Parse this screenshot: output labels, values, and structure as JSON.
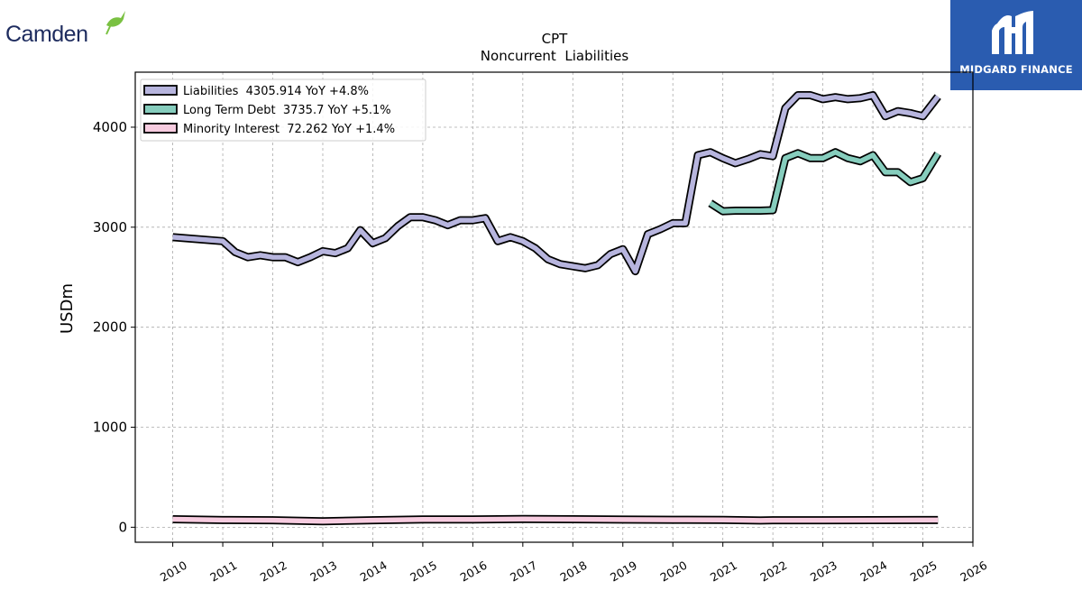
{
  "company_logo": {
    "text": "Camden",
    "colors": {
      "text": "#1d2b5e",
      "bird": "#7ac142"
    }
  },
  "brand": {
    "name": "MIDGARD FINANCE",
    "background": "#2a5cb0"
  },
  "chart_data": {
    "type": "line",
    "title": "CPT",
    "subtitle": "Noncurrent  Liabilities",
    "ylabel": "USDm",
    "xlabel": "",
    "xlim": [
      2009.25,
      2026.0
    ],
    "ylim": [
      -150,
      4550
    ],
    "x_ticks": [
      "2010",
      "2011",
      "2012",
      "2013",
      "2014",
      "2015",
      "2016",
      "2017",
      "2018",
      "2019",
      "2020",
      "2021",
      "2022",
      "2023",
      "2024",
      "2025",
      "2026"
    ],
    "y_ticks": [
      "0",
      "1000",
      "2000",
      "3000",
      "4000"
    ],
    "grid": true,
    "legend_position": "top-left",
    "series": [
      {
        "name": "Liabilities",
        "legend_label": "Liabilities  4305.914 YoY +4.8%",
        "color": "#b7b5de",
        "x": [
          2010.0,
          2011.0,
          2011.25,
          2011.5,
          2011.75,
          2012.0,
          2012.25,
          2012.5,
          2012.75,
          2013.0,
          2013.25,
          2013.5,
          2013.75,
          2014.0,
          2014.25,
          2014.5,
          2014.75,
          2015.0,
          2015.25,
          2015.5,
          2015.75,
          2016.0,
          2016.25,
          2016.5,
          2016.75,
          2017.0,
          2017.25,
          2017.5,
          2017.75,
          2018.0,
          2018.25,
          2018.5,
          2018.75,
          2019.0,
          2019.25,
          2019.5,
          2019.75,
          2020.0,
          2020.25,
          2020.5,
          2020.75,
          2021.0,
          2021.25,
          2021.5,
          2021.75,
          2022.0,
          2022.25,
          2022.5,
          2022.75,
          2023.0,
          2023.25,
          2023.5,
          2023.75,
          2024.0,
          2024.25,
          2024.5,
          2024.75,
          2025.0,
          2025.3
        ],
        "values": [
          2900,
          2860,
          2750,
          2700,
          2720,
          2700,
          2700,
          2650,
          2700,
          2760,
          2740,
          2790,
          2970,
          2840,
          2890,
          3010,
          3100,
          3100,
          3070,
          3020,
          3070,
          3070,
          3090,
          2860,
          2900,
          2860,
          2790,
          2680,
          2630,
          2610,
          2590,
          2620,
          2730,
          2780,
          2560,
          2930,
          2980,
          3040,
          3040,
          3720,
          3750,
          3690,
          3640,
          3680,
          3730,
          3710,
          4190,
          4320,
          4320,
          4280,
          4300,
          4280,
          4290,
          4320,
          4110,
          4160,
          4140,
          4110,
          4305.914
        ]
      },
      {
        "name": "Long Term Debt",
        "legend_label": "Long Term Debt  3735.7 YoY +5.1%",
        "color": "#86cdbd",
        "x": [
          2020.75,
          2021.0,
          2021.25,
          2021.5,
          2021.75,
          2022.0,
          2022.25,
          2022.5,
          2022.75,
          2023.0,
          2023.25,
          2023.5,
          2023.75,
          2024.0,
          2024.25,
          2024.5,
          2024.75,
          2025.0,
          2025.3
        ],
        "values": [
          3240,
          3160,
          3165,
          3165,
          3165,
          3170,
          3690,
          3740,
          3690,
          3690,
          3750,
          3690,
          3660,
          3720,
          3550,
          3550,
          3450,
          3490,
          3735.7
        ]
      },
      {
        "name": "Minority Interest",
        "legend_label": "Minority Interest  72.262 YoY +1.4%",
        "color": "#f7cce0",
        "x": [
          2010.0,
          2011.0,
          2012.0,
          2013.0,
          2014.0,
          2015.0,
          2016.0,
          2017.0,
          2018.0,
          2019.0,
          2020.0,
          2021.0,
          2021.75,
          2022.0,
          2023.0,
          2024.0,
          2025.3
        ],
        "values": [
          80,
          72,
          70,
          60,
          70,
          78,
          78,
          82,
          80,
          76,
          75,
          73,
          67,
          70,
          70,
          71,
          72.262
        ]
      }
    ]
  }
}
